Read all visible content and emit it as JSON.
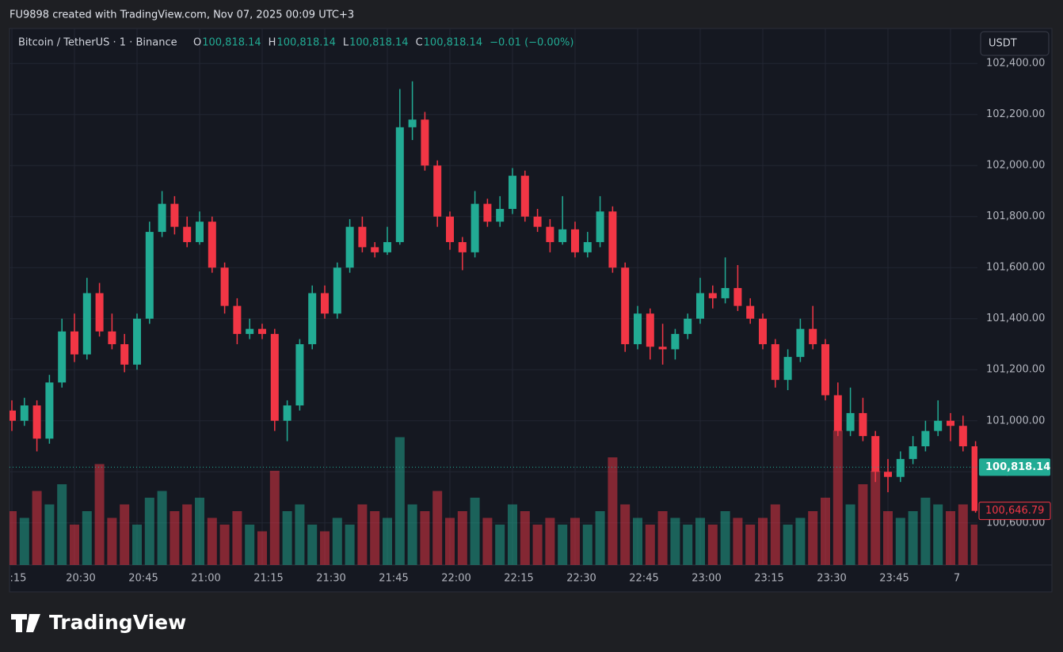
{
  "header": {
    "title": "FU9898 created with TradingView.com, Nov 07, 2025 00:09 UTC+3"
  },
  "legend": {
    "symbol": "Bitcoin / TetherUS · 1 · Binance",
    "ohlc": [
      {
        "label": "O",
        "value": "100,818.14"
      },
      {
        "label": "H",
        "value": "100,818.14"
      },
      {
        "label": "L",
        "value": "100,818.14"
      },
      {
        "label": "C",
        "value": "100,818.14"
      }
    ],
    "change": "−0.01 (−0.00%)"
  },
  "currency": "USDT",
  "brand": "TradingView",
  "chart_data": {
    "type": "candlestick",
    "up_color": "#22ab94",
    "down_color": "#f23645",
    "grid": true,
    "categories": [
      "20:15",
      "20:18",
      "20:21",
      "20:24",
      "20:27",
      "20:30",
      "20:33",
      "20:36",
      "20:39",
      "20:42",
      "20:45",
      "20:48",
      "20:51",
      "20:54",
      "20:57",
      "21:00",
      "21:03",
      "21:06",
      "21:09",
      "21:12",
      "21:15",
      "21:18",
      "21:21",
      "21:24",
      "21:27",
      "21:30",
      "21:33",
      "21:36",
      "21:39",
      "21:42",
      "21:45",
      "21:48",
      "21:51",
      "21:54",
      "21:57",
      "22:00",
      "22:03",
      "22:06",
      "22:09",
      "22:12",
      "22:15",
      "22:18",
      "22:21",
      "22:24",
      "22:27",
      "22:30",
      "22:33",
      "22:36",
      "22:39",
      "22:42",
      "22:45",
      "22:48",
      "22:51",
      "22:54",
      "22:57",
      "23:00",
      "23:03",
      "23:06",
      "23:09",
      "23:12",
      "23:15",
      "23:18",
      "23:21",
      "23:24",
      "23:27",
      "23:30",
      "23:33",
      "23:36",
      "23:39",
      "23:42",
      "23:45",
      "23:48",
      "23:51",
      "23:54",
      "23:57",
      "00:00",
      "00:03",
      "00:06"
    ],
    "open": [
      101040,
      101000,
      101060,
      100930,
      101150,
      101350,
      101260,
      101500,
      101350,
      101300,
      101220,
      101400,
      101740,
      101850,
      101760,
      101700,
      101780,
      101600,
      101450,
      101340,
      101360,
      101340,
      101000,
      101060,
      101300,
      101500,
      101420,
      101600,
      101760,
      101680,
      101660,
      101700,
      102150,
      102180,
      102000,
      101800,
      101700,
      101660,
      101850,
      101780,
      101830,
      101960,
      101800,
      101760,
      101700,
      101750,
      101660,
      101700,
      101820,
      101600,
      101300,
      101420,
      101290,
      101280,
      101340,
      101400,
      101500,
      101480,
      101520,
      101450,
      101400,
      101300,
      101160,
      101250,
      101360,
      101300,
      101100,
      100960,
      101030,
      100940,
      100800,
      100780,
      100850,
      100900,
      100960,
      101000,
      100980,
      100900
    ],
    "high": [
      101080,
      101090,
      101080,
      101180,
      101400,
      101420,
      101560,
      101540,
      101420,
      101340,
      101420,
      101780,
      101900,
      101880,
      101800,
      101820,
      101800,
      101620,
      101480,
      101400,
      101380,
      101360,
      101080,
      101320,
      101530,
      101530,
      101620,
      101790,
      101800,
      101700,
      101760,
      102300,
      102330,
      102210,
      102020,
      101820,
      101720,
      101900,
      101870,
      101880,
      101990,
      101980,
      101830,
      101790,
      101880,
      101780,
      101740,
      101880,
      101840,
      101620,
      101450,
      101440,
      101380,
      101360,
      101420,
      101560,
      101530,
      101640,
      101610,
      101480,
      101420,
      101320,
      101280,
      101400,
      101450,
      101320,
      101150,
      101130,
      101090,
      100960,
      100850,
      100880,
      100940,
      101000,
      101080,
      101030,
      101020,
      100920
    ],
    "low": [
      100960,
      100980,
      100880,
      100910,
      101130,
      101230,
      101240,
      101330,
      101280,
      101190,
      101200,
      101380,
      101720,
      101730,
      101680,
      101690,
      101580,
      101420,
      101300,
      101320,
      101320,
      100960,
      100920,
      101040,
      101280,
      101400,
      101400,
      101580,
      101660,
      101640,
      101650,
      101690,
      102100,
      101980,
      101760,
      101670,
      101590,
      101640,
      101760,
      101760,
      101810,
      101780,
      101740,
      101660,
      101690,
      101640,
      101640,
      101680,
      101580,
      101270,
      101280,
      101240,
      101220,
      101240,
      101320,
      101380,
      101440,
      101460,
      101430,
      101380,
      101280,
      101130,
      101120,
      101230,
      101280,
      101080,
      100940,
      100940,
      100920,
      100760,
      100720,
      100760,
      100830,
      100880,
      100940,
      100920,
      100880,
      100640
    ],
    "close": [
      101000,
      101060,
      100930,
      101150,
      101350,
      101260,
      101500,
      101350,
      101300,
      101220,
      101400,
      101740,
      101850,
      101760,
      101700,
      101780,
      101600,
      101450,
      101340,
      101360,
      101340,
      101000,
      101060,
      101300,
      101500,
      101420,
      101600,
      101760,
      101680,
      101660,
      101700,
      102150,
      102180,
      102000,
      101800,
      101700,
      101660,
      101850,
      101780,
      101830,
      101960,
      101800,
      101760,
      101700,
      101750,
      101660,
      101700,
      101820,
      101600,
      101300,
      101420,
      101290,
      101280,
      101340,
      101400,
      101500,
      101480,
      101520,
      101450,
      101400,
      101300,
      101160,
      101250,
      101360,
      101300,
      101100,
      100960,
      101030,
      100940,
      100800,
      100780,
      100850,
      100900,
      100960,
      101000,
      100980,
      100900,
      100646.79
    ],
    "volume": [
      40,
      35,
      55,
      45,
      60,
      30,
      40,
      75,
      35,
      45,
      30,
      50,
      55,
      40,
      45,
      50,
      35,
      30,
      40,
      30,
      25,
      70,
      40,
      45,
      30,
      25,
      35,
      30,
      45,
      40,
      35,
      95,
      45,
      40,
      55,
      35,
      40,
      50,
      35,
      30,
      45,
      40,
      30,
      35,
      30,
      35,
      30,
      40,
      80,
      45,
      35,
      30,
      40,
      35,
      30,
      35,
      30,
      40,
      35,
      30,
      35,
      45,
      30,
      35,
      40,
      50,
      100,
      45,
      60,
      70,
      40,
      35,
      40,
      50,
      45,
      40,
      45,
      30
    ],
    "ylim": [
      100435,
      102537
    ],
    "yticks": [
      {
        "value": 100600,
        "label": "100,600.00"
      },
      {
        "value": 100800,
        "label": "100,800.00"
      },
      {
        "value": 101000,
        "label": "101,000.00"
      },
      {
        "value": 101200,
        "label": "101,200.00"
      },
      {
        "value": 101400,
        "label": "101,400.00"
      },
      {
        "value": 101600,
        "label": "101,600.00"
      },
      {
        "value": 101800,
        "label": "101,800.00"
      },
      {
        "value": 102000,
        "label": "102,000.00"
      },
      {
        "value": 102200,
        "label": "102,200.00"
      },
      {
        "value": 102400,
        "label": "102,400.00"
      }
    ],
    "xticks": [
      {
        "value": "20:15",
        "label": ":15"
      },
      "20:30",
      "20:45",
      "21:00",
      "21:15",
      "21:30",
      "21:45",
      "22:00",
      "22:15",
      "22:30",
      "22:45",
      "23:00",
      "23:15",
      "23:30",
      "23:45",
      {
        "value": "00:00",
        "label": "7"
      }
    ],
    "last_price": {
      "value": 100818.14,
      "label": "100,818.14"
    },
    "close_marker": {
      "value": 100646.79,
      "label": "100,646.79"
    }
  }
}
